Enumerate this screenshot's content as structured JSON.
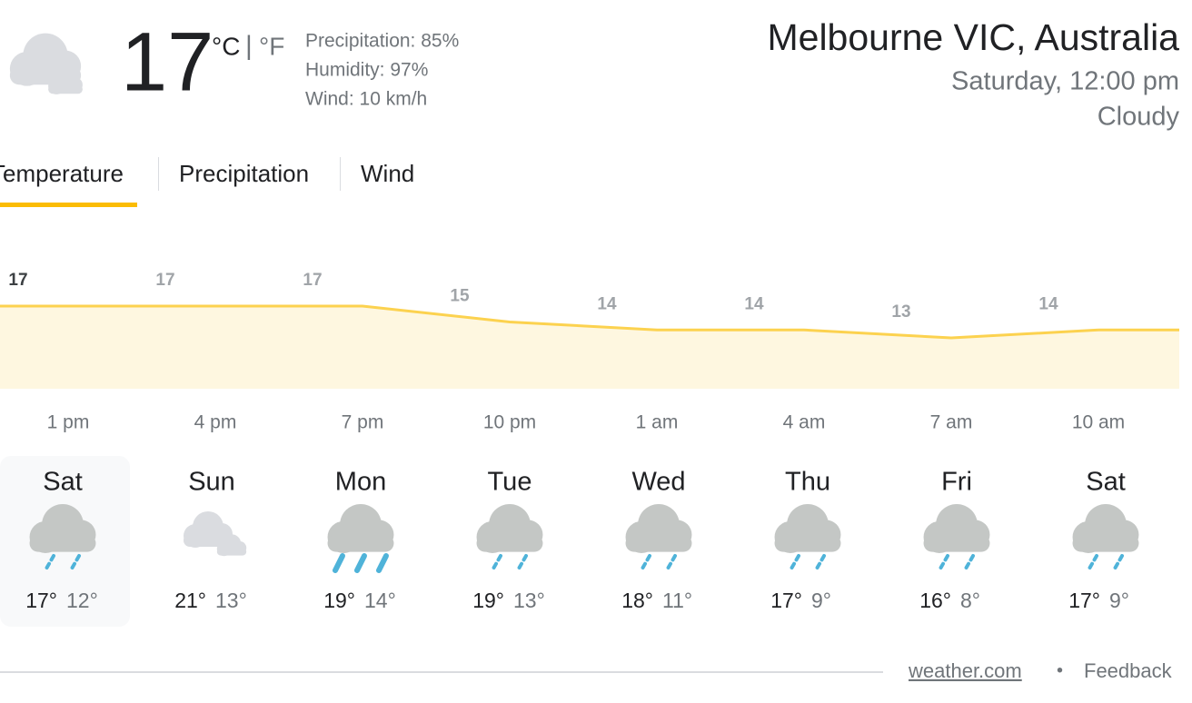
{
  "current": {
    "icon": "cloudy",
    "temperature": "17",
    "unit_c": "°C",
    "unit_separator": "|",
    "unit_f": "°F",
    "precipitation": "Precipitation: 85%",
    "humidity": "Humidity: 97%",
    "wind": "Wind: 10 km/h"
  },
  "location": {
    "name": "Melbourne VIC, Australia",
    "datetime": "Saturday, 12:00 pm",
    "condition": "Cloudy"
  },
  "tabs": [
    "Temperature",
    "Precipitation",
    "Wind"
  ],
  "chart_data": {
    "type": "line",
    "categories": [
      "1 pm",
      "4 pm",
      "7 pm",
      "10 pm",
      "1 am",
      "4 am",
      "7 am",
      "10 am"
    ],
    "values": [
      17,
      17,
      17,
      15,
      14,
      14,
      13,
      14
    ],
    "color": "#fcd24f"
  },
  "days": [
    {
      "name": "Sat",
      "icon": "rain",
      "high": "17°",
      "low": "12°"
    },
    {
      "name": "Sun",
      "icon": "partly-cloudy",
      "high": "21°",
      "low": "13°"
    },
    {
      "name": "Mon",
      "icon": "heavy-rain",
      "high": "19°",
      "low": "14°"
    },
    {
      "name": "Tue",
      "icon": "rain",
      "high": "19°",
      "low": "13°"
    },
    {
      "name": "Wed",
      "icon": "rain",
      "high": "18°",
      "low": "11°"
    },
    {
      "name": "Thu",
      "icon": "rain",
      "high": "17°",
      "low": "9°"
    },
    {
      "name": "Fri",
      "icon": "rain",
      "high": "16°",
      "low": "8°"
    },
    {
      "name": "Sat",
      "icon": "rain",
      "high": "17°",
      "low": "9°"
    }
  ],
  "footer": {
    "source": "weather.com",
    "separator": "•",
    "feedback": "Feedback"
  }
}
